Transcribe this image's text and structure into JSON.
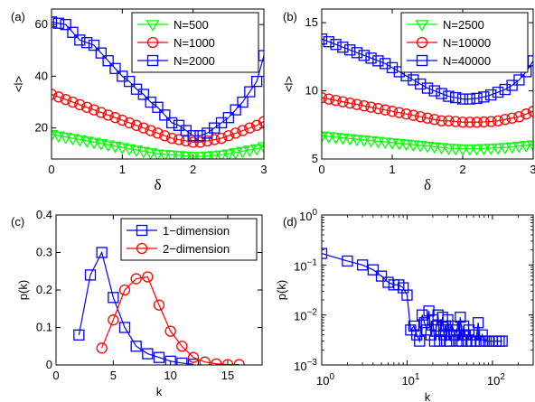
{
  "chart_data": [
    {
      "panel": "(a)",
      "type": "line",
      "xlabel": "δ",
      "ylabel": "<l>",
      "xlim": [
        0,
        3
      ],
      "ylim": [
        8,
        66
      ],
      "xticks": [
        0,
        1,
        2,
        3
      ],
      "yticks": [
        20,
        40,
        60
      ],
      "xscale": "linear",
      "yscale": "linear",
      "legend_position": "top-right",
      "series": [
        {
          "name": "N=500",
          "color": "#00ff00",
          "marker": "triangle-down",
          "x": [
            0,
            0.1,
            0.2,
            0.3,
            0.4,
            0.5,
            0.6,
            0.7,
            0.8,
            0.9,
            1,
            1.1,
            1.2,
            1.3,
            1.4,
            1.5,
            1.6,
            1.7,
            1.8,
            1.9,
            2,
            2.1,
            2.2,
            2.3,
            2.4,
            2.5,
            2.6,
            2.7,
            2.8,
            2.9,
            3
          ],
          "values": [
            17.5,
            17,
            16.5,
            16,
            15.5,
            15,
            14.5,
            14,
            13.5,
            13,
            12.5,
            12,
            11.5,
            11,
            10.5,
            10,
            9.8,
            9.6,
            9.4,
            9.2,
            9,
            9,
            9.2,
            9.4,
            9.6,
            10,
            10.5,
            11,
            11.5,
            12,
            12.8
          ]
        },
        {
          "name": "N=1000",
          "color": "#ff0000",
          "marker": "circle",
          "x": [
            0,
            0.1,
            0.2,
            0.3,
            0.4,
            0.5,
            0.6,
            0.7,
            0.8,
            0.9,
            1,
            1.1,
            1.2,
            1.3,
            1.4,
            1.5,
            1.6,
            1.7,
            1.8,
            1.9,
            2,
            2.1,
            2.2,
            2.3,
            2.4,
            2.5,
            2.6,
            2.7,
            2.8,
            2.9,
            3
          ],
          "values": [
            33,
            32,
            31,
            30,
            29,
            28,
            27,
            26,
            25,
            24,
            23,
            22,
            21,
            20,
            19,
            18,
            17,
            16,
            15.5,
            15,
            14.5,
            14.5,
            15,
            15.5,
            16,
            17,
            18,
            19,
            20,
            21,
            22.5
          ]
        },
        {
          "name": "N=2000",
          "color": "#0000ff",
          "marker": "square",
          "x": [
            0,
            0.1,
            0.2,
            0.3,
            0.4,
            0.5,
            0.6,
            0.7,
            0.8,
            0.9,
            1,
            1.1,
            1.2,
            1.3,
            1.4,
            1.5,
            1.6,
            1.7,
            1.8,
            1.9,
            2,
            2.1,
            2.2,
            2.3,
            2.4,
            2.5,
            2.6,
            2.7,
            2.8,
            2.9,
            3
          ],
          "values": [
            61,
            60.5,
            60,
            57,
            54,
            53,
            52,
            49,
            46,
            43,
            40,
            38,
            35,
            33,
            30,
            28,
            25,
            22,
            21,
            19,
            17,
            17,
            18,
            20,
            22,
            24,
            27,
            30,
            34,
            38,
            48
          ]
        }
      ]
    },
    {
      "panel": "(b)",
      "type": "line",
      "xlabel": "δ",
      "ylabel": "<l>",
      "xlim": [
        0,
        3
      ],
      "ylim": [
        5,
        16
      ],
      "xticks": [
        0,
        1,
        2,
        3
      ],
      "yticks": [
        5,
        10,
        15
      ],
      "xscale": "linear",
      "yscale": "linear",
      "legend_position": "top-right",
      "series": [
        {
          "name": "N=2500",
          "color": "#00ff00",
          "marker": "triangle-down",
          "x": [
            0,
            0.1,
            0.2,
            0.3,
            0.4,
            0.5,
            0.6,
            0.7,
            0.8,
            0.9,
            1,
            1.1,
            1.2,
            1.3,
            1.4,
            1.5,
            1.6,
            1.7,
            1.8,
            1.9,
            2,
            2.1,
            2.2,
            2.3,
            2.4,
            2.5,
            2.6,
            2.7,
            2.8,
            2.9,
            3
          ],
          "values": [
            6.7,
            6.65,
            6.6,
            6.55,
            6.5,
            6.45,
            6.4,
            6.35,
            6.3,
            6.25,
            6.2,
            6.15,
            6.1,
            6.05,
            6,
            5.95,
            5.9,
            5.85,
            5.8,
            5.78,
            5.75,
            5.75,
            5.75,
            5.78,
            5.8,
            5.82,
            5.85,
            5.9,
            5.95,
            6,
            6.05
          ]
        },
        {
          "name": "N=10000",
          "color": "#ff0000",
          "marker": "circle",
          "x": [
            0,
            0.1,
            0.2,
            0.3,
            0.4,
            0.5,
            0.6,
            0.7,
            0.8,
            0.9,
            1,
            1.1,
            1.2,
            1.3,
            1.4,
            1.5,
            1.6,
            1.7,
            1.8,
            1.9,
            2,
            2.1,
            2.2,
            2.3,
            2.4,
            2.5,
            2.6,
            2.7,
            2.8,
            2.9,
            3
          ],
          "values": [
            9.5,
            9.4,
            9.3,
            9.2,
            9.1,
            9.0,
            8.9,
            8.8,
            8.7,
            8.6,
            8.5,
            8.4,
            8.3,
            8.2,
            8.1,
            8.0,
            7.9,
            7.8,
            7.8,
            7.75,
            7.7,
            7.7,
            7.7,
            7.72,
            7.75,
            7.8,
            7.9,
            8.0,
            8.1,
            8.3,
            8.5
          ]
        },
        {
          "name": "N=40000",
          "color": "#0000ff",
          "marker": "square",
          "x": [
            0,
            0.1,
            0.2,
            0.3,
            0.4,
            0.5,
            0.6,
            0.7,
            0.8,
            0.9,
            1,
            1.1,
            1.2,
            1.3,
            1.4,
            1.5,
            1.6,
            1.7,
            1.8,
            1.9,
            2,
            2.1,
            2.2,
            2.3,
            2.4,
            2.5,
            2.6,
            2.7,
            2.8,
            2.9,
            3
          ],
          "values": [
            13.8,
            13.6,
            13.4,
            13.2,
            13.0,
            12.8,
            12.6,
            12.4,
            12.2,
            12.0,
            11.7,
            11.4,
            11.1,
            10.8,
            10.5,
            10.2,
            10.0,
            9.8,
            9.6,
            9.5,
            9.4,
            9.4,
            9.45,
            9.55,
            9.7,
            9.9,
            10.1,
            10.4,
            10.8,
            11.4,
            12.2
          ]
        }
      ]
    },
    {
      "panel": "(c)",
      "type": "line",
      "xlabel": "k",
      "ylabel": "p(k)",
      "xlim": [
        0,
        18
      ],
      "ylim": [
        0,
        0.4
      ],
      "xticks": [
        0,
        5,
        10,
        15
      ],
      "yticks": [
        0,
        0.1,
        0.2,
        0.3,
        0.4
      ],
      "xscale": "linear",
      "yscale": "linear",
      "legend_position": "top-right",
      "series": [
        {
          "name": "1−dimension",
          "color": "#0000ff",
          "marker": "square",
          "x": [
            2,
            3,
            4,
            5,
            6,
            7,
            8,
            9,
            10,
            11,
            12
          ],
          "values": [
            0.08,
            0.24,
            0.3,
            0.18,
            0.1,
            0.05,
            0.03,
            0.02,
            0.01,
            0.005,
            0.002
          ]
        },
        {
          "name": "2−dimension",
          "color": "#ff0000",
          "marker": "circle",
          "x": [
            4,
            5,
            6,
            7,
            8,
            9,
            10,
            11,
            12,
            13,
            14,
            15,
            16
          ],
          "values": [
            0.045,
            0.12,
            0.2,
            0.23,
            0.235,
            0.16,
            0.09,
            0.05,
            0.02,
            0.008,
            0.003,
            0.001,
            0.001
          ]
        }
      ]
    },
    {
      "panel": "(d)",
      "type": "line",
      "xlabel": "k",
      "ylabel": "p(k)",
      "xlim": [
        1,
        300
      ],
      "ylim": [
        0.001,
        1
      ],
      "xticks": [
        1,
        10,
        100
      ],
      "xticklabels": [
        "10^0",
        "10^1",
        "10^2"
      ],
      "yticks": [
        0.001,
        0.01,
        0.1,
        1
      ],
      "yticklabels": [
        "10^-3",
        "10^-2",
        "10^-1",
        "10^0"
      ],
      "xscale": "log",
      "yscale": "log",
      "series": [
        {
          "name": "",
          "color": "#0000ff",
          "marker": "square",
          "x": [
            1,
            2,
            3,
            4,
            5,
            6,
            7,
            8,
            9,
            10,
            11,
            12,
            13,
            14,
            15,
            16,
            17,
            18,
            19,
            20,
            21,
            22,
            23,
            24,
            25,
            26,
            27,
            28,
            29,
            30,
            32,
            34,
            36,
            38,
            40,
            42,
            44,
            46,
            48,
            50,
            53,
            56,
            60,
            64,
            68,
            72,
            76,
            80,
            90,
            100,
            110,
            120,
            130
          ],
          "values": [
            0.17,
            0.12,
            0.1,
            0.08,
            0.06,
            0.045,
            0.04,
            0.04,
            0.035,
            0.025,
            0.005,
            0.006,
            0.004,
            0.003,
            0.01,
            0.007,
            0.005,
            0.012,
            0.004,
            0.008,
            0.003,
            0.006,
            0.01,
            0.003,
            0.005,
            0.009,
            0.004,
            0.006,
            0.003,
            0.008,
            0.003,
            0.006,
            0.004,
            0.005,
            0.003,
            0.009,
            0.003,
            0.006,
            0.004,
            0.003,
            0.005,
            0.003,
            0.004,
            0.003,
            0.007,
            0.003,
            0.004,
            0.003,
            0.003,
            0.003,
            0.003,
            0.003,
            0.003
          ]
        }
      ]
    }
  ]
}
